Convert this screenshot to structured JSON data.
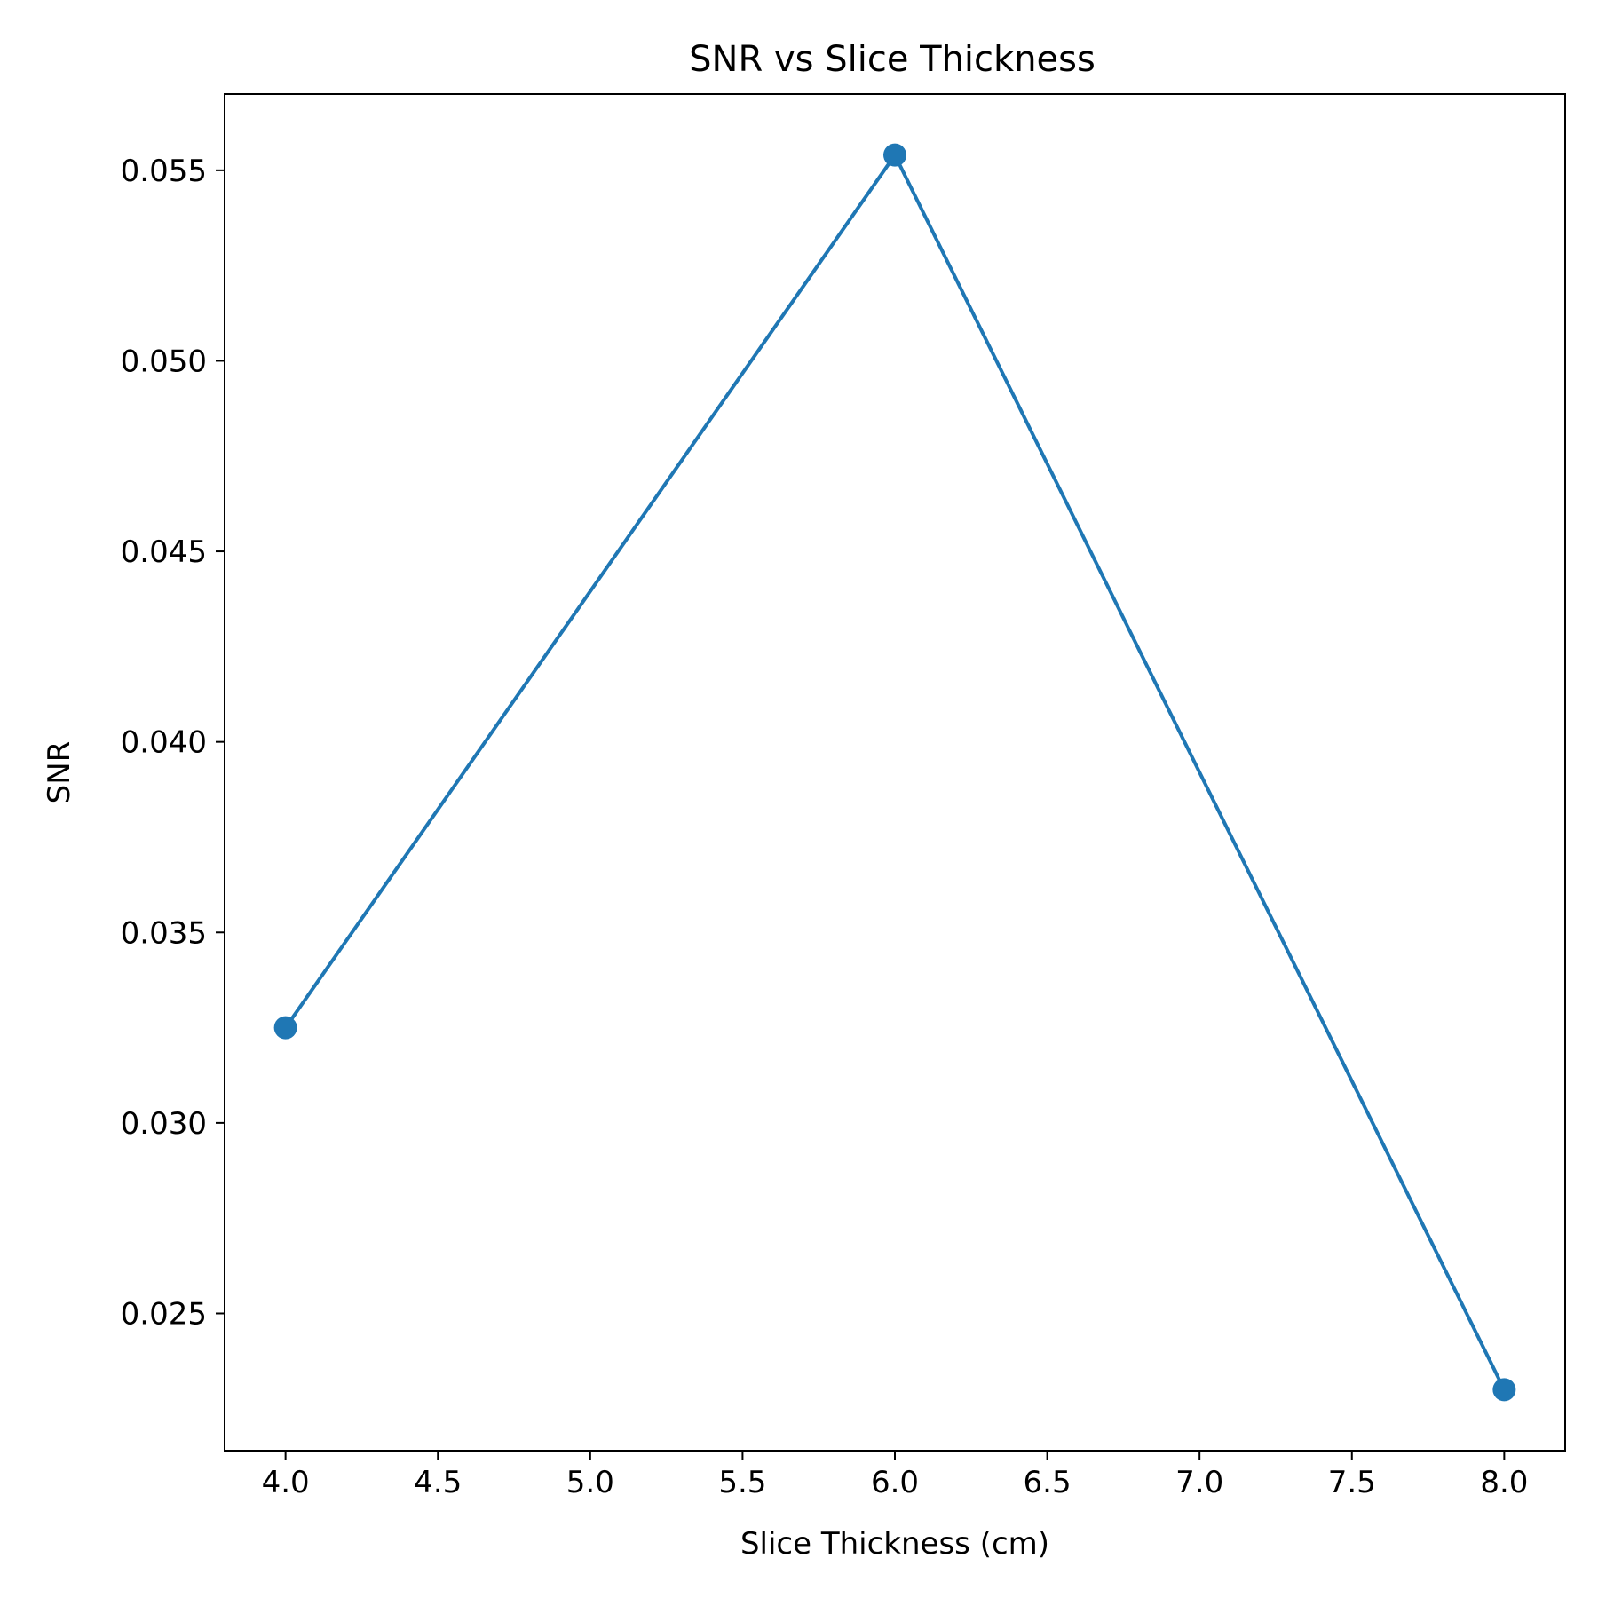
{
  "chart_data": {
    "type": "line",
    "title": "SNR vs Slice Thickness",
    "xlabel": "Slice Thickness (cm)",
    "ylabel": "SNR",
    "x": [
      4.0,
      6.0,
      8.0
    ],
    "series": [
      {
        "values": [
          0.0325,
          0.0554,
          0.023
        ]
      }
    ],
    "xlim": [
      3.8,
      8.2
    ],
    "ylim": [
      0.0214,
      0.057
    ],
    "xticks": [
      4.0,
      4.5,
      5.0,
      5.5,
      6.0,
      6.5,
      7.0,
      7.5,
      8.0
    ],
    "xtick_labels": [
      "4.0",
      "4.5",
      "5.0",
      "5.5",
      "6.0",
      "6.5",
      "7.0",
      "7.5",
      "8.0"
    ],
    "yticks": [
      0.025,
      0.03,
      0.035,
      0.04,
      0.045,
      0.05,
      0.055
    ],
    "ytick_labels": [
      "0.025",
      "0.030",
      "0.035",
      "0.040",
      "0.045",
      "0.050",
      "0.055"
    ],
    "grid": false,
    "markers": true,
    "line_color": "#1f77b4"
  }
}
